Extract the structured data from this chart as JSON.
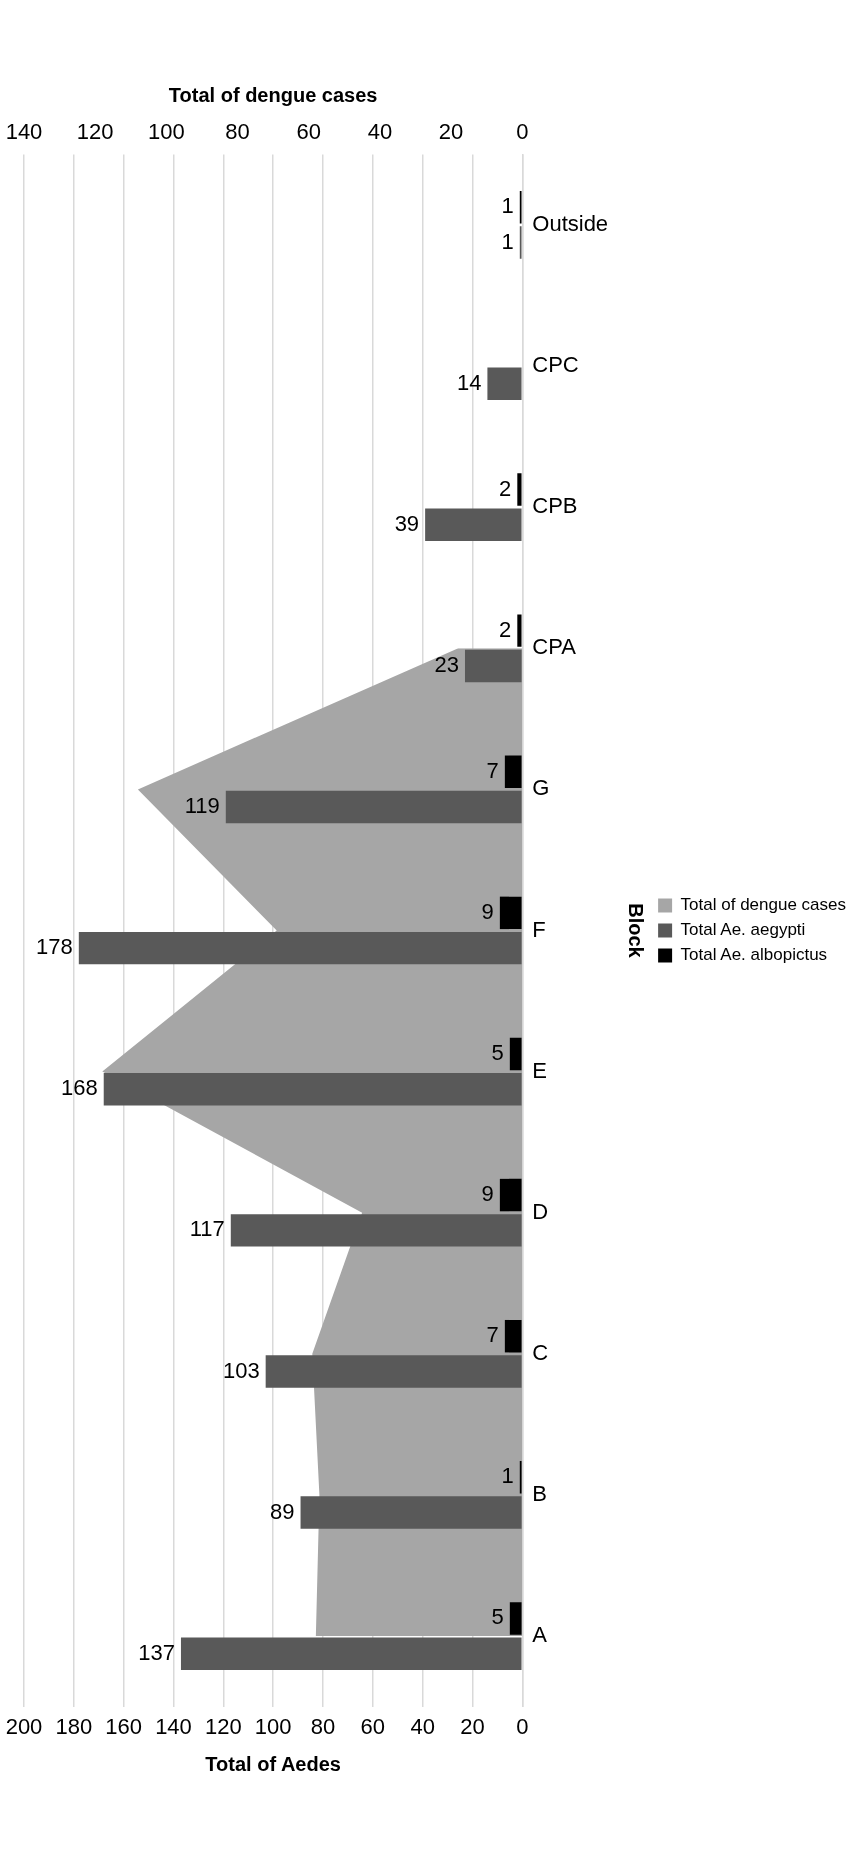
{
  "chart_data": {
    "type": "bar",
    "orientation": "horizontal",
    "ylabel": "Block",
    "xlabel": "Total of Aedes",
    "x2label": "Total of dengue cases",
    "categories": [
      "Outside",
      "CPC",
      "CPB",
      "CPA",
      "G",
      "F",
      "E",
      "D",
      "C",
      "B",
      "A"
    ],
    "series": [
      {
        "name": "Total of dengue cases",
        "type": "area",
        "axis": "x2",
        "color": "#a6a6a6",
        "values": [
          null,
          null,
          null,
          18,
          108,
          69,
          118,
          45,
          59,
          57,
          58
        ]
      },
      {
        "name": "Total Ae. aegypti",
        "color": "#595959",
        "values": [
          1,
          14,
          39,
          23,
          119,
          178,
          168,
          117,
          103,
          89,
          137
        ],
        "value_labels": [
          "1",
          "14",
          "39",
          "23",
          "119",
          "178",
          "168",
          "117",
          "103",
          "89",
          "137"
        ]
      },
      {
        "name": "Total Ae. albopictus",
        "color": "#000000",
        "values": [
          1,
          null,
          2,
          2,
          7,
          9,
          5,
          9,
          7,
          1,
          5
        ],
        "value_labels": [
          "1",
          null,
          "2",
          "2",
          "7",
          "9",
          "5",
          "9",
          "7",
          "1",
          "5"
        ]
      }
    ],
    "xlim": [
      200,
      0
    ],
    "xticks": [
      0,
      20,
      40,
      60,
      80,
      100,
      120,
      140,
      160,
      180,
      200
    ],
    "x2lim": [
      140,
      0
    ],
    "x2ticks": [
      0,
      20,
      40,
      60,
      80,
      100,
      120,
      140
    ],
    "grid": "x",
    "legend": "right"
  }
}
